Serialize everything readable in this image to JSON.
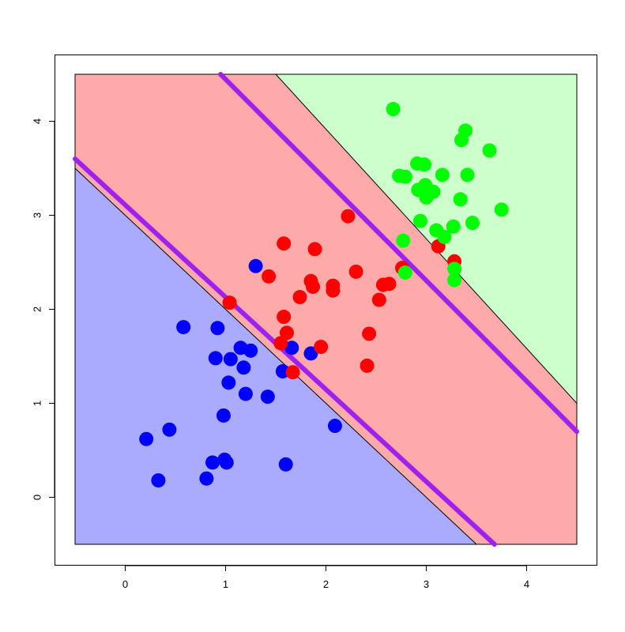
{
  "chart_data": {
    "type": "scatter",
    "title": "",
    "xlabel": "",
    "ylabel": "",
    "xlim": [
      -0.5,
      4.5
    ],
    "ylim": [
      -0.5,
      4.5
    ],
    "x_ticks": [
      "0",
      "1",
      "2",
      "3",
      "4"
    ],
    "y_ticks": [
      "0",
      "1",
      "2",
      "3",
      "4"
    ],
    "grid": false,
    "legend": "none",
    "regions": [
      {
        "name": "blue region",
        "color": "#aaaaff",
        "polygon": [
          [
            -0.5,
            -0.5
          ],
          [
            -0.5,
            3.5
          ],
          [
            3.5,
            -0.5
          ]
        ]
      },
      {
        "name": "red region",
        "color": "#ffaaaa",
        "polygon": [
          [
            -0.5,
            3.5
          ],
          [
            -0.5,
            4.5
          ],
          [
            1.5,
            4.5
          ],
          [
            4.5,
            1.0
          ],
          [
            4.5,
            -0.5
          ],
          [
            3.5,
            -0.5
          ]
        ]
      },
      {
        "name": "green region",
        "color": "#ccffcc",
        "polygon": [
          [
            1.5,
            4.5
          ],
          [
            4.5,
            4.5
          ],
          [
            4.5,
            1.0
          ]
        ]
      }
    ],
    "boundary_lines": [
      {
        "color": "#000000",
        "points": [
          [
            -0.5,
            3.5
          ],
          [
            3.5,
            -0.5
          ]
        ]
      },
      {
        "color": "#000000",
        "points": [
          [
            1.5,
            4.5
          ],
          [
            4.5,
            1.0
          ]
        ]
      }
    ],
    "fitted_lines": [
      {
        "color": "#a020f0",
        "points": [
          [
            -0.5,
            3.6
          ],
          [
            3.68,
            -0.5
          ]
        ]
      },
      {
        "color": "#a020f0",
        "points": [
          [
            0.95,
            4.5
          ],
          [
            4.5,
            0.7
          ]
        ]
      }
    ],
    "series": [
      {
        "color": "#0000ff",
        "points": [
          [
            0.21,
            0.62
          ],
          [
            0.33,
            0.18
          ],
          [
            0.44,
            0.72
          ],
          [
            0.58,
            1.81
          ],
          [
            0.81,
            0.2
          ],
          [
            0.87,
            0.37
          ],
          [
            0.9,
            1.48
          ],
          [
            0.92,
            1.8
          ],
          [
            0.98,
            0.87
          ],
          [
            0.99,
            0.4
          ],
          [
            1.01,
            0.37
          ],
          [
            1.03,
            1.22
          ],
          [
            1.05,
            1.47
          ],
          [
            1.15,
            1.59
          ],
          [
            1.18,
            1.38
          ],
          [
            1.2,
            1.1
          ],
          [
            1.25,
            1.56
          ],
          [
            1.3,
            2.46
          ],
          [
            1.42,
            1.07
          ],
          [
            1.57,
            1.34
          ],
          [
            1.6,
            0.35
          ],
          [
            1.66,
            1.59
          ],
          [
            1.85,
            1.53
          ],
          [
            2.09,
            0.76
          ]
        ]
      },
      {
        "color": "#ff0000",
        "points": [
          [
            1.04,
            2.07
          ],
          [
            1.43,
            2.35
          ],
          [
            1.55,
            1.64
          ],
          [
            1.58,
            1.92
          ],
          [
            1.58,
            2.7
          ],
          [
            1.61,
            1.75
          ],
          [
            1.67,
            1.33
          ],
          [
            1.74,
            2.13
          ],
          [
            1.85,
            2.3
          ],
          [
            1.87,
            2.24
          ],
          [
            1.89,
            2.64
          ],
          [
            1.95,
            1.6
          ],
          [
            2.07,
            2.2
          ],
          [
            2.07,
            2.25
          ],
          [
            2.22,
            2.99
          ],
          [
            2.3,
            2.4
          ],
          [
            2.41,
            1.4
          ],
          [
            2.43,
            1.74
          ],
          [
            2.53,
            2.1
          ],
          [
            2.57,
            2.26
          ],
          [
            2.63,
            2.27
          ],
          [
            2.76,
            2.44
          ],
          [
            3.12,
            2.67
          ],
          [
            3.28,
            2.51
          ]
        ]
      },
      {
        "color": "#00ff00",
        "points": [
          [
            2.67,
            4.13
          ],
          [
            2.73,
            3.42
          ],
          [
            2.77,
            2.73
          ],
          [
            2.79,
            3.41
          ],
          [
            2.79,
            2.39
          ],
          [
            2.91,
            3.55
          ],
          [
            2.92,
            3.27
          ],
          [
            2.94,
            2.94
          ],
          [
            2.98,
            3.54
          ],
          [
            2.99,
            3.32
          ],
          [
            3.0,
            3.19
          ],
          [
            3.02,
            3.27
          ],
          [
            3.07,
            3.25
          ],
          [
            3.1,
            2.84
          ],
          [
            3.16,
            3.43
          ],
          [
            3.18,
            2.77
          ],
          [
            3.27,
            2.88
          ],
          [
            3.28,
            2.43
          ],
          [
            3.28,
            2.31
          ],
          [
            3.34,
            3.17
          ],
          [
            3.35,
            3.8
          ],
          [
            3.39,
            3.9
          ],
          [
            3.41,
            3.43
          ],
          [
            3.46,
            2.92
          ],
          [
            3.63,
            3.69
          ],
          [
            3.75,
            3.06
          ]
        ]
      }
    ]
  }
}
